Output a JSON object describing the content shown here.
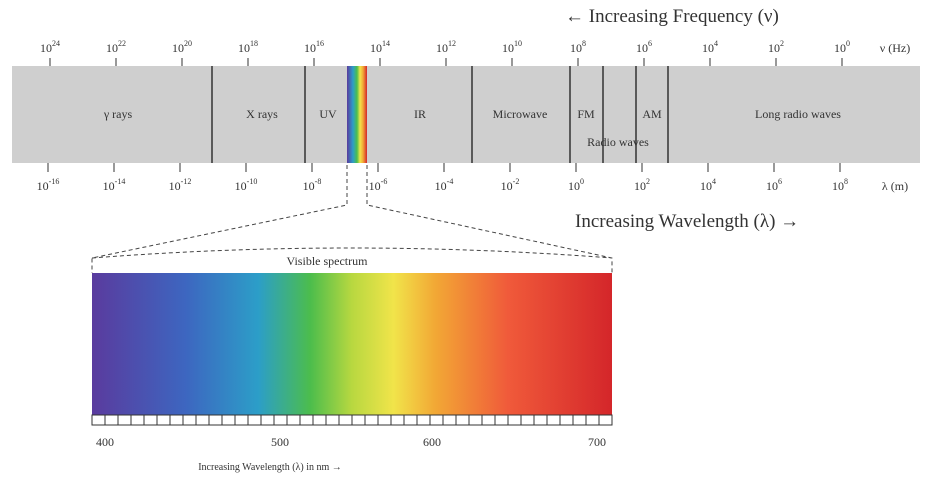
{
  "frequency": {
    "title": "← Increasing Frequency (ν)",
    "ticks": [
      {
        "base": "10",
        "exp": "24"
      },
      {
        "base": "10",
        "exp": "22"
      },
      {
        "base": "10",
        "exp": "20"
      },
      {
        "base": "10",
        "exp": "18"
      },
      {
        "base": "10",
        "exp": "16"
      },
      {
        "base": "10",
        "exp": "14"
      },
      {
        "base": "10",
        "exp": "12"
      },
      {
        "base": "10",
        "exp": "10"
      },
      {
        "base": "10",
        "exp": "8"
      },
      {
        "base": "10",
        "exp": "6"
      },
      {
        "base": "10",
        "exp": "4"
      },
      {
        "base": "10",
        "exp": "2"
      },
      {
        "base": "10",
        "exp": "0"
      }
    ],
    "unit": "ν (Hz)"
  },
  "bands": [
    "γ rays",
    "X rays",
    "UV",
    "IR",
    "Microwave",
    "FM",
    "AM",
    "Radio waves",
    "Long radio waves"
  ],
  "wavelength": {
    "title": "Increasing Wavelength (λ) →",
    "ticks": [
      {
        "base": "10",
        "exp": "-16"
      },
      {
        "base": "10",
        "exp": "-14"
      },
      {
        "base": "10",
        "exp": "-12"
      },
      {
        "base": "10",
        "exp": "-10"
      },
      {
        "base": "10",
        "exp": "-8"
      },
      {
        "base": "10",
        "exp": "-6"
      },
      {
        "base": "10",
        "exp": "-4"
      },
      {
        "base": "10",
        "exp": "-2"
      },
      {
        "base": "10",
        "exp": "0"
      },
      {
        "base": "10",
        "exp": "2"
      },
      {
        "base": "10",
        "exp": "4"
      },
      {
        "base": "10",
        "exp": "6"
      },
      {
        "base": "10",
        "exp": "8"
      }
    ],
    "unit": "λ (m)"
  },
  "visible": {
    "title": "Visible spectrum",
    "ticks": [
      "400",
      "500",
      "600",
      "700"
    ],
    "axis_label": "Increasing Wavelength (λ) in nm →"
  }
}
